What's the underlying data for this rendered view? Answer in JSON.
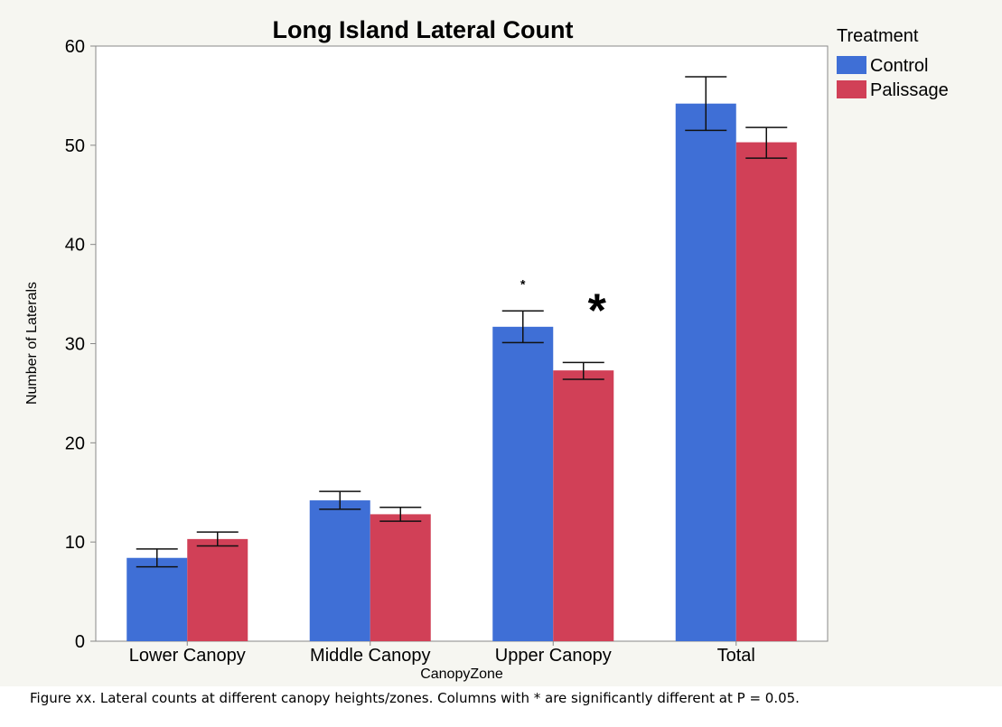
{
  "colors": {
    "background": "#f6f6f1",
    "plot_background": "#ffffff",
    "control": "#3f6fd6",
    "palissage": "#d14057",
    "axis": "#888888",
    "errorbar": "#111111"
  },
  "chart_data": {
    "type": "bar",
    "title": "Long Island Lateral Count",
    "xlabel": "CanopyZone",
    "ylabel": "Number of Laterals",
    "ylim": [
      0,
      60
    ],
    "yticks": [
      0,
      10,
      20,
      30,
      40,
      50,
      60
    ],
    "grid": false,
    "categories": [
      "Lower Canopy",
      "Middle Canopy",
      "Upper Canopy",
      "Total"
    ],
    "legend": {
      "title": "Treatment",
      "placement": "right"
    },
    "series": [
      {
        "name": "Control",
        "color": "#3f6fd6",
        "values": [
          8.4,
          14.2,
          31.7,
          54.2
        ],
        "err_low": [
          7.5,
          13.3,
          30.1,
          51.5
        ],
        "err_high": [
          9.3,
          15.1,
          33.3,
          56.9
        ]
      },
      {
        "name": "Palissage",
        "color": "#d14057",
        "values": [
          10.3,
          12.8,
          27.3,
          50.3
        ],
        "err_low": [
          9.6,
          12.1,
          26.4,
          48.7
        ],
        "err_high": [
          11.0,
          13.5,
          28.1,
          51.8
        ]
      }
    ],
    "annotations": [
      {
        "text": "*",
        "category": "Upper Canopy",
        "series": "Control",
        "size": "small"
      },
      {
        "text": "*",
        "category": "Upper Canopy",
        "series": "Palissage",
        "size": "large"
      }
    ]
  },
  "caption": "Figure xx. Lateral counts at different canopy heights/zones. Columns with * are significantly different at P = 0.05."
}
